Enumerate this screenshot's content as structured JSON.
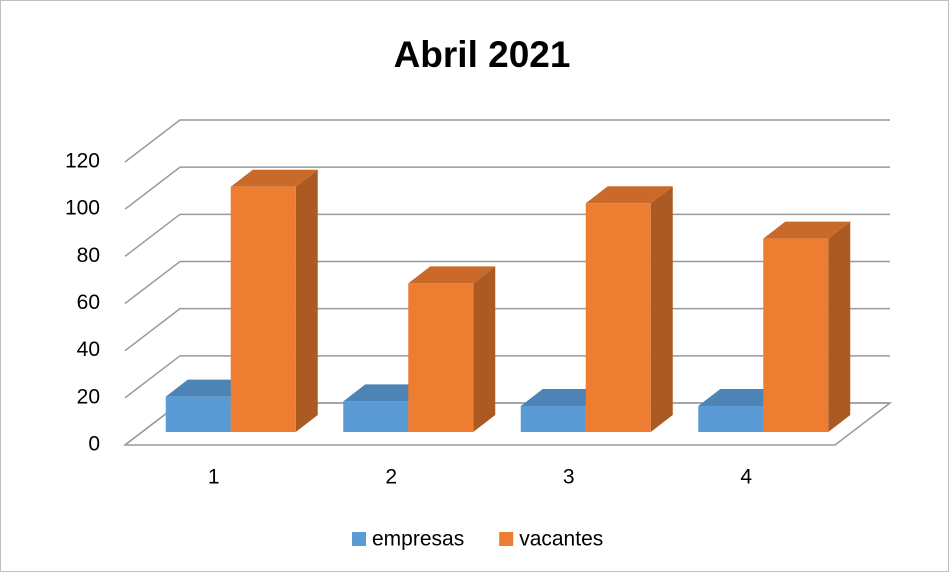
{
  "chart_data": {
    "type": "bar3d",
    "title": "Abril  2021",
    "categories": [
      "1",
      "2",
      "3",
      "4"
    ],
    "series": [
      {
        "name": "empresas",
        "color": "#5b9bd5",
        "values": [
          15,
          13,
          11,
          11
        ]
      },
      {
        "name": "vacantes",
        "color": "#ed7d31",
        "values": [
          104,
          63,
          97,
          82
        ]
      }
    ],
    "ylim": [
      0,
      120
    ],
    "yticks": [
      0,
      20,
      40,
      60,
      80,
      100,
      120
    ],
    "grid": true,
    "legend": "bottom"
  }
}
